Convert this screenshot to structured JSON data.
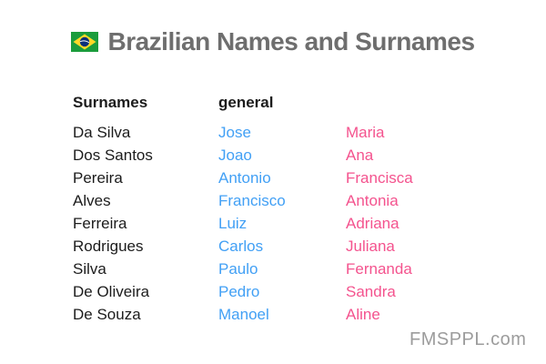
{
  "header": {
    "title": "Brazilian Names and Surnames",
    "flag_icon": "brazil-flag-icon"
  },
  "table": {
    "columns": [
      "Surnames",
      "general",
      ""
    ],
    "rows": [
      [
        "Da Silva",
        "Jose",
        "Maria"
      ],
      [
        "Dos Santos",
        "Joao",
        "Ana"
      ],
      [
        "Pereira",
        "Antonio",
        "Francisca"
      ],
      [
        "Alves",
        "Francisco",
        "Antonia"
      ],
      [
        "Ferreira",
        "Luiz",
        "Adriana"
      ],
      [
        "Rodrigues",
        "Carlos",
        "Juliana"
      ],
      [
        "Silva",
        "Paulo",
        "Fernanda"
      ],
      [
        "De Oliveira",
        "Pedro",
        "Sandra"
      ],
      [
        "De Souza",
        "Manoel",
        "Aline"
      ]
    ]
  },
  "footer": {
    "watermark": "FMSPPL.com"
  },
  "colors": {
    "title_gray": "#6E6E6E",
    "text_black": "#1C1C1C",
    "male_name_blue": "#42A0F5",
    "female_name_pink": "#F4538E",
    "watermark_gray": "#9C9C9C",
    "flag_green": "#1B9C3C",
    "flag_yellow": "#FFD928",
    "flag_blue": "#0B2F7A"
  }
}
